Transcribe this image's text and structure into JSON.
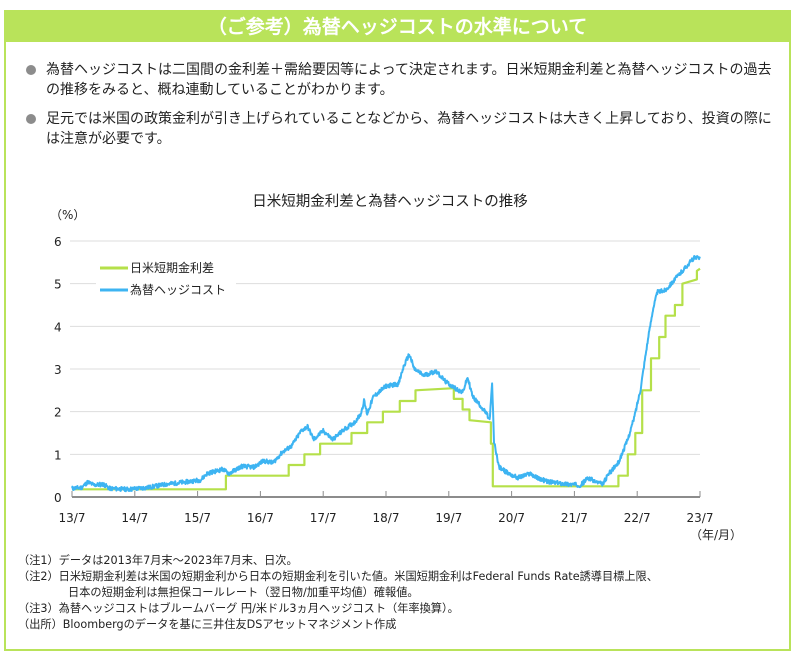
{
  "header": {
    "title": "（ご参考）為替ヘッジコストの水準について"
  },
  "bullets": [
    {
      "text": "為替ヘッジコストは二国間の金利差＋需給要因等によって決定されます。日米短期金利差と為替ヘッジコストの過去の推移をみると、概ね連動していることがわかります。"
    },
    {
      "text": "足元では米国の政策金利が引き上げられていることなどから、為替ヘッジコストは大きく上昇しており、投資の際には注意が必要です。"
    }
  ],
  "colors": {
    "accent": "#b9e35a",
    "series_spread": "#b5e04a",
    "series_hedge": "#3db4f2",
    "grid": "#dddddd",
    "axis": "#8c8c8c"
  },
  "chart_data": {
    "type": "line",
    "title": "日米短期金利差と為替ヘッジコストの推移",
    "ylabel": "（%）",
    "xlabel": "（年/月）",
    "ylim": [
      0,
      6
    ],
    "xlim": [
      2013.5,
      2023.5
    ],
    "yticks": [
      0,
      1,
      2,
      3,
      4,
      5,
      6
    ],
    "yticklabels": [
      "0",
      "1",
      "2",
      "3",
      "4",
      "5",
      "6"
    ],
    "xticks": [
      2013.5,
      2014.5,
      2015.5,
      2016.5,
      2017.5,
      2018.5,
      2019.5,
      2020.5,
      2021.5,
      2022.5,
      2023.5
    ],
    "xticklabels": [
      "13/7",
      "14/7",
      "15/7",
      "16/7",
      "17/7",
      "18/7",
      "19/7",
      "20/7",
      "21/7",
      "22/7",
      "23/7"
    ],
    "grid": true,
    "legend_position": "top-left",
    "series": [
      {
        "name": "日米短期金利差",
        "step": true,
        "points": [
          [
            2013.5,
            0.18
          ],
          [
            2015.95,
            0.18
          ],
          [
            2015.95,
            0.5
          ],
          [
            2016.95,
            0.5
          ],
          [
            2016.95,
            0.75
          ],
          [
            2017.2,
            0.75
          ],
          [
            2017.2,
            1.0
          ],
          [
            2017.45,
            1.0
          ],
          [
            2017.45,
            1.25
          ],
          [
            2017.95,
            1.25
          ],
          [
            2017.95,
            1.5
          ],
          [
            2018.2,
            1.5
          ],
          [
            2018.2,
            1.75
          ],
          [
            2018.45,
            1.75
          ],
          [
            2018.45,
            2.0
          ],
          [
            2018.72,
            2.0
          ],
          [
            2018.72,
            2.25
          ],
          [
            2018.97,
            2.25
          ],
          [
            2018.97,
            2.5
          ],
          [
            2019.58,
            2.55
          ],
          [
            2019.58,
            2.3
          ],
          [
            2019.72,
            2.3
          ],
          [
            2019.72,
            2.05
          ],
          [
            2019.83,
            2.05
          ],
          [
            2019.83,
            1.8
          ],
          [
            2020.17,
            1.75
          ],
          [
            2020.17,
            1.25
          ],
          [
            2020.2,
            1.25
          ],
          [
            2020.2,
            0.25
          ],
          [
            2022.2,
            0.25
          ],
          [
            2022.2,
            0.5
          ],
          [
            2022.35,
            0.5
          ],
          [
            2022.35,
            1.0
          ],
          [
            2022.47,
            1.0
          ],
          [
            2022.47,
            1.5
          ],
          [
            2022.58,
            1.5
          ],
          [
            2022.58,
            2.5
          ],
          [
            2022.72,
            2.5
          ],
          [
            2022.72,
            3.25
          ],
          [
            2022.85,
            3.25
          ],
          [
            2022.85,
            3.75
          ],
          [
            2022.95,
            3.75
          ],
          [
            2022.95,
            4.25
          ],
          [
            2023.1,
            4.25
          ],
          [
            2023.1,
            4.5
          ],
          [
            2023.22,
            4.5
          ],
          [
            2023.22,
            5.0
          ],
          [
            2023.45,
            5.1
          ],
          [
            2023.45,
            5.3
          ],
          [
            2023.5,
            5.35
          ]
        ]
      },
      {
        "name": "為替ヘッジコスト",
        "step": false,
        "points": [
          [
            2013.5,
            0.2
          ],
          [
            2013.65,
            0.22
          ],
          [
            2013.75,
            0.35
          ],
          [
            2013.85,
            0.28
          ],
          [
            2014.0,
            0.3
          ],
          [
            2014.1,
            0.2
          ],
          [
            2014.4,
            0.18
          ],
          [
            2014.7,
            0.22
          ],
          [
            2015.0,
            0.3
          ],
          [
            2015.3,
            0.35
          ],
          [
            2015.55,
            0.4
          ],
          [
            2015.65,
            0.55
          ],
          [
            2015.9,
            0.65
          ],
          [
            2016.0,
            0.55
          ],
          [
            2016.2,
            0.72
          ],
          [
            2016.4,
            0.7
          ],
          [
            2016.55,
            0.85
          ],
          [
            2016.7,
            0.8
          ],
          [
            2016.85,
            1.05
          ],
          [
            2017.0,
            1.2
          ],
          [
            2017.15,
            1.55
          ],
          [
            2017.25,
            1.65
          ],
          [
            2017.35,
            1.35
          ],
          [
            2017.5,
            1.55
          ],
          [
            2017.65,
            1.35
          ],
          [
            2017.85,
            1.6
          ],
          [
            2018.0,
            1.75
          ],
          [
            2018.1,
            1.95
          ],
          [
            2018.15,
            2.25
          ],
          [
            2018.2,
            1.95
          ],
          [
            2018.3,
            2.35
          ],
          [
            2018.5,
            2.6
          ],
          [
            2018.7,
            2.65
          ],
          [
            2018.78,
            3.05
          ],
          [
            2018.87,
            3.35
          ],
          [
            2018.95,
            3.0
          ],
          [
            2019.1,
            2.85
          ],
          [
            2019.3,
            2.95
          ],
          [
            2019.45,
            2.7
          ],
          [
            2019.6,
            2.55
          ],
          [
            2019.72,
            2.45
          ],
          [
            2019.8,
            2.8
          ],
          [
            2019.88,
            2.35
          ],
          [
            2020.0,
            2.15
          ],
          [
            2020.1,
            1.95
          ],
          [
            2020.15,
            1.8
          ],
          [
            2020.19,
            2.65
          ],
          [
            2020.22,
            1.3
          ],
          [
            2020.3,
            0.7
          ],
          [
            2020.45,
            0.55
          ],
          [
            2020.6,
            0.45
          ],
          [
            2020.8,
            0.55
          ],
          [
            2020.9,
            0.45
          ],
          [
            2021.1,
            0.35
          ],
          [
            2021.4,
            0.3
          ],
          [
            2021.6,
            0.28
          ],
          [
            2021.72,
            0.45
          ],
          [
            2021.85,
            0.35
          ],
          [
            2021.95,
            0.3
          ],
          [
            2022.05,
            0.55
          ],
          [
            2022.2,
            0.8
          ],
          [
            2022.35,
            1.35
          ],
          [
            2022.45,
            1.85
          ],
          [
            2022.55,
            2.5
          ],
          [
            2022.65,
            3.5
          ],
          [
            2022.75,
            4.4
          ],
          [
            2022.82,
            4.8
          ],
          [
            2022.95,
            4.85
          ],
          [
            2023.1,
            5.1
          ],
          [
            2023.25,
            5.35
          ],
          [
            2023.4,
            5.6
          ],
          [
            2023.5,
            5.6
          ]
        ]
      }
    ]
  },
  "notes": [
    {
      "text": "（注1）データは2013年7月末～2023年7月末、日次。"
    },
    {
      "text": "（注2）日米短期金利差は米国の短期金利から日本の短期金利を引いた値。米国短期金利はFederal Funds Rate誘導目標上限、"
    },
    {
      "text": "日本の短期金利は無担保コールレート（翌日物/加重平均値）確報値。"
    },
    {
      "text": "（注3）為替ヘッジコストはブルームバーグ 円/米ドル3ヵ月ヘッジコスト（年率換算）。"
    },
    {
      "text": "（出所）Bloombergのデータを基に三井住友DSアセットマネジメント作成"
    }
  ]
}
